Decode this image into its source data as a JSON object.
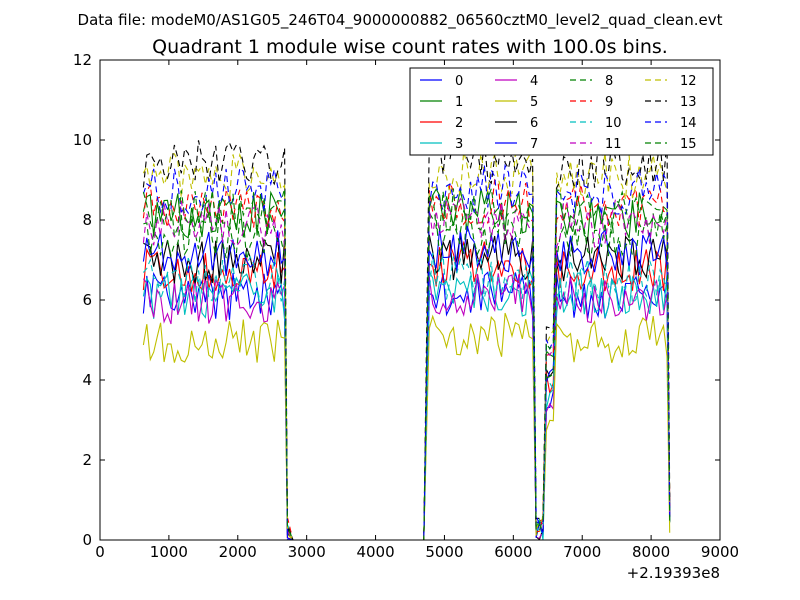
{
  "figure": {
    "suptitle": "Data file: modeM0/AS1G05_246T04_9000000882_06560cztM0_level2_quad_clean.evt"
  },
  "chart_data": {
    "type": "line",
    "title": "Quadrant 1 module wise count rates with 100.0s bins.",
    "xlabel": "",
    "ylabel": "",
    "x_offset_label": "+2.19393e8",
    "xlim": [
      0,
      9000
    ],
    "ylim": [
      0,
      12
    ],
    "xticks": [
      0,
      1000,
      2000,
      3000,
      4000,
      5000,
      6000,
      7000,
      8000,
      9000
    ],
    "yticks": [
      0,
      2,
      4,
      6,
      8,
      10,
      12
    ],
    "grid": false,
    "legend_placement": "top-right",
    "legend_columns": 4,
    "segments": [
      {
        "x": [
          630,
          680,
          730,
          780,
          830,
          880,
          930,
          980,
          1030,
          1080,
          1130,
          1180,
          1230,
          1280,
          1330,
          1380,
          1430,
          1480,
          1530,
          1580,
          1630,
          1680,
          1730,
          1780,
          1830,
          1880,
          1930,
          1980,
          2030,
          2080,
          2130,
          2180,
          2230,
          2280,
          2330,
          2380,
          2430,
          2480,
          2530,
          2580,
          2630,
          2680
        ],
        "base": 7.0
      },
      {
        "x": [
          2720
        ],
        "base": 0.25
      },
      {
        "x": [
          2800,
          4600,
          4700
        ],
        "base": 0.0
      },
      {
        "x": [
          4780,
          4830,
          4880,
          4930,
          4980,
          5030,
          5080,
          5130,
          5180,
          5230,
          5280,
          5330,
          5380,
          5430,
          5480,
          5530,
          5580,
          5630,
          5680,
          5730,
          5780,
          5830,
          5880,
          5930,
          5980,
          6030,
          6080,
          6130,
          6180,
          6230,
          6280
        ],
        "base": 7.2
      },
      {
        "x": [
          6330,
          6380,
          6430
        ],
        "base": 0.3
      },
      {
        "x": [
          6480,
          6530,
          6580
        ],
        "base": 4.0
      },
      {
        "x": [
          6630,
          6680,
          6730,
          6780,
          6830,
          6880,
          6930,
          6980,
          7030,
          7080,
          7130,
          7180,
          7230,
          7280,
          7330,
          7380,
          7430,
          7480,
          7530,
          7580,
          7630,
          7680,
          7730,
          7780,
          7830,
          7880,
          7930,
          7980,
          8030,
          8080,
          8130,
          8180,
          8230
        ],
        "base": 7.0
      },
      {
        "x": [
          8270
        ],
        "base": 0.6
      }
    ],
    "series": [
      {
        "name": "0",
        "color": "#0000ff",
        "dash": "solid",
        "mean": 6.1
      },
      {
        "name": "1",
        "color": "#008000",
        "dash": "solid",
        "mean": 8.1
      },
      {
        "name": "2",
        "color": "#ff0000",
        "dash": "solid",
        "mean": 6.8
      },
      {
        "name": "3",
        "color": "#00bfbf",
        "dash": "solid",
        "mean": 6.1
      },
      {
        "name": "4",
        "color": "#bf00bf",
        "dash": "solid",
        "mean": 6.0
      },
      {
        "name": "5",
        "color": "#bfbf00",
        "dash": "solid",
        "mean": 5.0
      },
      {
        "name": "6",
        "color": "#000000",
        "dash": "solid",
        "mean": 7.0
      },
      {
        "name": "7",
        "color": "#0000ff",
        "dash": "solid",
        "mean": 7.2
      },
      {
        "name": "8",
        "color": "#008000",
        "dash": "dashed",
        "mean": 7.6
      },
      {
        "name": "9",
        "color": "#ff0000",
        "dash": "dashed",
        "mean": 8.4
      },
      {
        "name": "10",
        "color": "#00bfbf",
        "dash": "dashed",
        "mean": 6.5
      },
      {
        "name": "11",
        "color": "#bf00bf",
        "dash": "dashed",
        "mean": 7.9
      },
      {
        "name": "12",
        "color": "#bfbf00",
        "dash": "dashed",
        "mean": 9.1
      },
      {
        "name": "13",
        "color": "#000000",
        "dash": "dashed",
        "mean": 9.4
      },
      {
        "name": "14",
        "color": "#0000ff",
        "dash": "dashed",
        "mean": 8.7
      },
      {
        "name": "15",
        "color": "#008000",
        "dash": "dashed",
        "mean": 8.2
      }
    ]
  }
}
